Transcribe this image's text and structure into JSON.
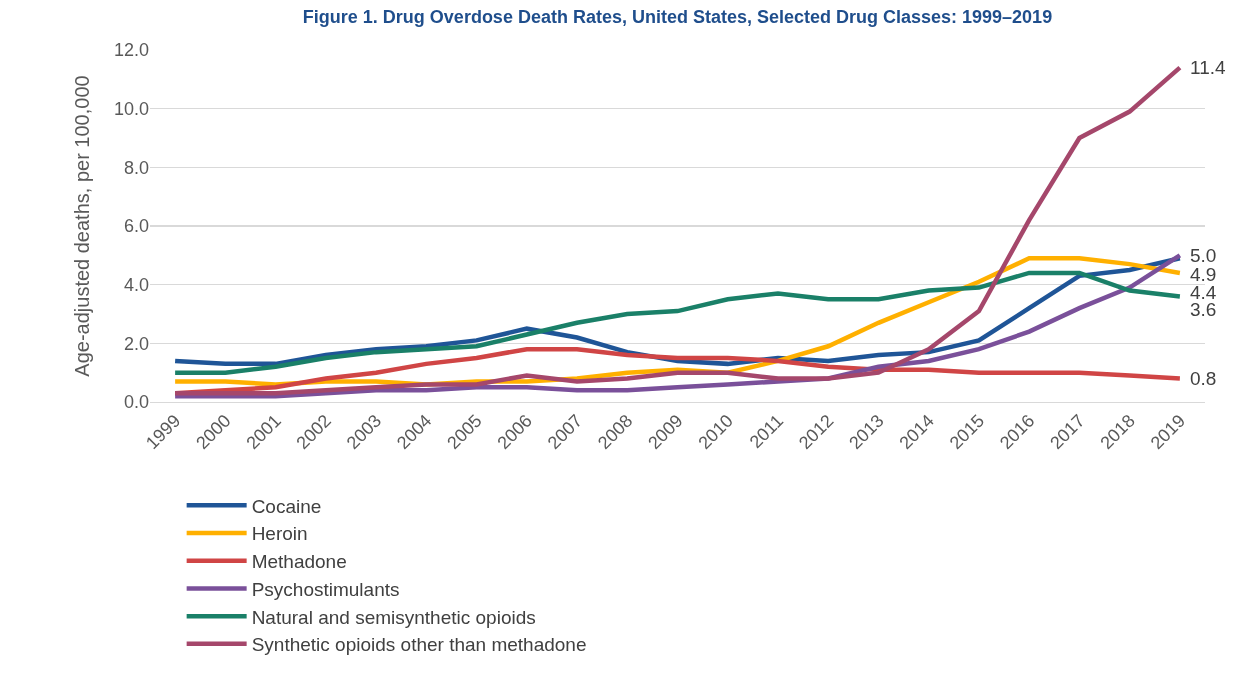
{
  "chart_data": {
    "type": "line",
    "title": "Figure 1. Drug Overdose Death Rates, United States, Selected Drug Classes: 1999–2019",
    "ylabel": "Age-adjusted deaths, per 100,000",
    "categories": [
      "1999",
      "2000",
      "2001",
      "2002",
      "2003",
      "2004",
      "2005",
      "2006",
      "2007",
      "2008",
      "2009",
      "2010",
      "2011",
      "2012",
      "2013",
      "2014",
      "2015",
      "2016",
      "2017",
      "2018",
      "2019"
    ],
    "series": [
      {
        "name": "Cocaine",
        "color": "#1f5597",
        "values": [
          1.4,
          1.3,
          1.3,
          1.6,
          1.8,
          1.9,
          2.1,
          2.5,
          2.2,
          1.7,
          1.4,
          1.3,
          1.5,
          1.4,
          1.6,
          1.7,
          2.1,
          3.2,
          4.3,
          4.5,
          4.9
        ],
        "value_labels": [
          null,
          null,
          null,
          null,
          null,
          null,
          null,
          null,
          null,
          null,
          null,
          null,
          null,
          null,
          null,
          null,
          null,
          null,
          null,
          null,
          "4.9"
        ]
      },
      {
        "name": "Heroin",
        "color": "#ffb000",
        "values": [
          0.7,
          0.7,
          0.6,
          0.7,
          0.7,
          0.6,
          0.7,
          0.7,
          0.8,
          1.0,
          1.1,
          1.0,
          1.4,
          1.9,
          2.7,
          3.4,
          4.1,
          4.9,
          4.9,
          4.7,
          4.4
        ],
        "value_labels": [
          null,
          null,
          null,
          null,
          null,
          null,
          null,
          null,
          null,
          null,
          null,
          null,
          null,
          null,
          null,
          null,
          null,
          null,
          null,
          null,
          "4.4"
        ]
      },
      {
        "name": "Methadone",
        "color": "#d04545",
        "values": [
          0.3,
          0.4,
          0.5,
          0.8,
          1.0,
          1.3,
          1.5,
          1.8,
          1.8,
          1.6,
          1.5,
          1.5,
          1.4,
          1.2,
          1.1,
          1.1,
          1.0,
          1.0,
          1.0,
          0.9,
          0.8
        ],
        "value_labels": [
          null,
          null,
          null,
          null,
          null,
          null,
          null,
          null,
          null,
          null,
          null,
          null,
          null,
          null,
          null,
          null,
          null,
          null,
          null,
          null,
          "0.8"
        ]
      },
      {
        "name": "Psychostimulants",
        "color": "#7a509a",
        "values": [
          0.2,
          0.2,
          0.2,
          0.3,
          0.4,
          0.4,
          0.5,
          0.5,
          0.4,
          0.4,
          0.5,
          0.6,
          0.7,
          0.8,
          1.2,
          1.4,
          1.8,
          2.4,
          3.2,
          3.9,
          5.0
        ],
        "value_labels": [
          null,
          null,
          null,
          null,
          null,
          null,
          null,
          null,
          null,
          null,
          null,
          null,
          null,
          null,
          null,
          null,
          null,
          null,
          null,
          null,
          "5.0"
        ]
      },
      {
        "name": "Natural and semisynthetic opioids",
        "color": "#1a8068",
        "values": [
          1.0,
          1.0,
          1.2,
          1.5,
          1.7,
          1.8,
          1.9,
          2.3,
          2.7,
          3.0,
          3.1,
          3.5,
          3.7,
          3.5,
          3.5,
          3.8,
          3.9,
          4.4,
          4.4,
          3.8,
          3.6
        ],
        "value_labels": [
          null,
          null,
          null,
          null,
          null,
          null,
          null,
          null,
          null,
          null,
          null,
          null,
          null,
          null,
          null,
          null,
          null,
          null,
          null,
          null,
          "3.6"
        ]
      },
      {
        "name": "Synthetic opioids other than methadone",
        "color": "#a5476b",
        "values": [
          0.3,
          0.3,
          0.3,
          0.4,
          0.5,
          0.6,
          0.6,
          0.9,
          0.7,
          0.8,
          1.0,
          1.0,
          0.8,
          0.8,
          1.0,
          1.8,
          3.1,
          6.2,
          9.0,
          9.9,
          11.4
        ],
        "value_labels": [
          null,
          null,
          null,
          null,
          null,
          null,
          null,
          null,
          null,
          null,
          null,
          null,
          null,
          null,
          null,
          null,
          null,
          null,
          null,
          null,
          "11.4"
        ]
      }
    ],
    "ylim": [
      0,
      12
    ],
    "yticks": [
      {
        "value": 0,
        "label": "0.0"
      },
      {
        "value": 2,
        "label": "2.0"
      },
      {
        "value": 4,
        "label": "4.0"
      },
      {
        "value": 6,
        "label": "6.0"
      },
      {
        "value": 8,
        "label": "8.0"
      },
      {
        "value": 10,
        "label": "10.0"
      },
      {
        "value": 12,
        "label": "12.0"
      }
    ],
    "grid": "y",
    "legend": "bottom",
    "marker": "none",
    "line_style": "solid"
  }
}
